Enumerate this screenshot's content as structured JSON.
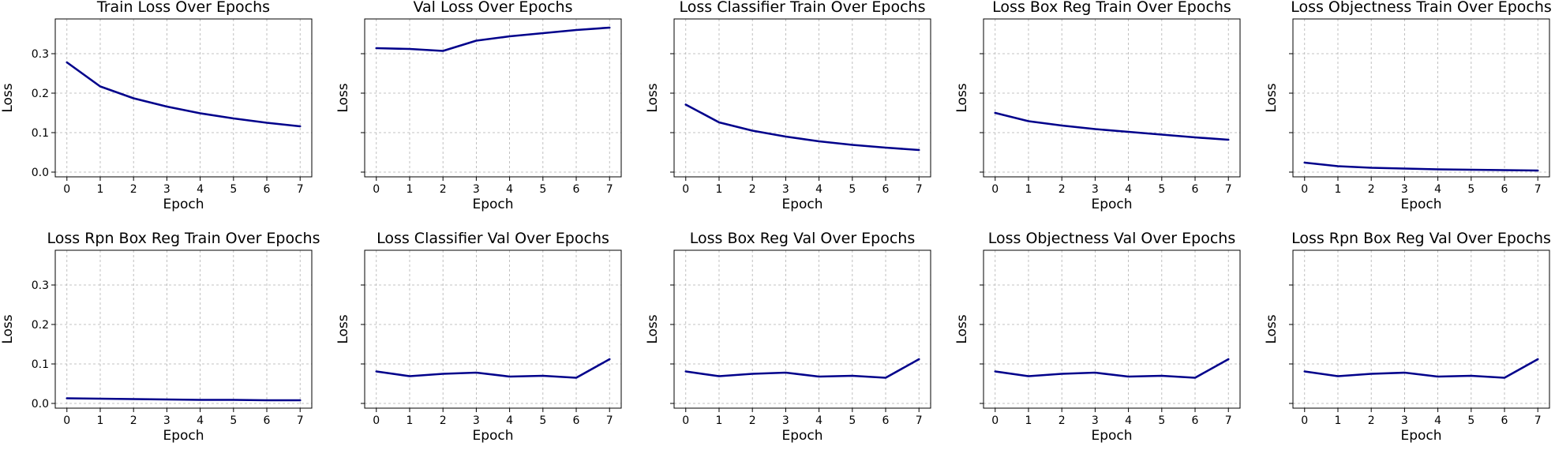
{
  "line_color": "#00008b",
  "grid_color": "#b0b0b0",
  "chart_data": [
    {
      "type": "line",
      "title": "Train Loss Over Epochs",
      "xlabel": "Epoch",
      "ylabel": "Loss",
      "x": [
        0,
        1,
        2,
        3,
        4,
        5,
        6,
        7
      ],
      "values": [
        0.278,
        0.217,
        0.187,
        0.166,
        0.149,
        0.136,
        0.125,
        0.116
      ],
      "xlim": [
        -0.35,
        7.35
      ],
      "ylim": [
        -0.012,
        0.388
      ],
      "xticks": [
        0,
        1,
        2,
        3,
        4,
        5,
        6,
        7
      ],
      "yticks": [
        0.0,
        0.1,
        0.2,
        0.3
      ],
      "ytick_labels": [
        "0.0",
        "0.1",
        "0.2",
        "0.3"
      ],
      "grid": true
    },
    {
      "type": "line",
      "title": "Val Loss Over Epochs",
      "xlabel": "Epoch",
      "ylabel": "Loss",
      "x": [
        0,
        1,
        2,
        3,
        4,
        5,
        6,
        7
      ],
      "values": [
        0.314,
        0.312,
        0.307,
        0.333,
        0.344,
        0.352,
        0.36,
        0.366
      ],
      "xlim": [
        -0.35,
        7.35
      ],
      "ylim": [
        -0.012,
        0.388
      ],
      "xticks": [
        0,
        1,
        2,
        3,
        4,
        5,
        6,
        7
      ],
      "yticks": [
        0.0,
        0.1,
        0.2,
        0.3
      ],
      "ytick_labels": [
        "",
        "",
        "",
        ""
      ],
      "grid": true
    },
    {
      "type": "line",
      "title": "Loss Classifier Train Over Epochs",
      "xlabel": "Epoch",
      "ylabel": "Loss",
      "x": [
        0,
        1,
        2,
        3,
        4,
        5,
        6,
        7
      ],
      "values": [
        0.171,
        0.126,
        0.105,
        0.09,
        0.078,
        0.069,
        0.062,
        0.056
      ],
      "xlim": [
        -0.35,
        7.35
      ],
      "ylim": [
        -0.012,
        0.388
      ],
      "xticks": [
        0,
        1,
        2,
        3,
        4,
        5,
        6,
        7
      ],
      "yticks": [
        0.0,
        0.1,
        0.2,
        0.3
      ],
      "ytick_labels": [
        "",
        "",
        "",
        ""
      ],
      "grid": true
    },
    {
      "type": "line",
      "title": "Loss Box Reg Train Over Epochs",
      "xlabel": "Epoch",
      "ylabel": "Loss",
      "x": [
        0,
        1,
        2,
        3,
        4,
        5,
        6,
        7
      ],
      "values": [
        0.15,
        0.129,
        0.118,
        0.109,
        0.102,
        0.095,
        0.088,
        0.082
      ],
      "xlim": [
        -0.35,
        7.35
      ],
      "ylim": [
        -0.012,
        0.388
      ],
      "xticks": [
        0,
        1,
        2,
        3,
        4,
        5,
        6,
        7
      ],
      "yticks": [
        0.0,
        0.1,
        0.2,
        0.3
      ],
      "ytick_labels": [
        "",
        "",
        "",
        ""
      ],
      "grid": true
    },
    {
      "type": "line",
      "title": "Loss Objectness Train Over Epochs",
      "xlabel": "Epoch",
      "ylabel": "Loss",
      "x": [
        0,
        1,
        2,
        3,
        4,
        5,
        6,
        7
      ],
      "values": [
        0.024,
        0.015,
        0.011,
        0.009,
        0.007,
        0.006,
        0.005,
        0.004
      ],
      "xlim": [
        -0.35,
        7.35
      ],
      "ylim": [
        -0.012,
        0.388
      ],
      "xticks": [
        0,
        1,
        2,
        3,
        4,
        5,
        6,
        7
      ],
      "yticks": [
        0.0,
        0.1,
        0.2,
        0.3
      ],
      "ytick_labels": [
        "",
        "",
        "",
        ""
      ],
      "grid": true
    },
    {
      "type": "line",
      "title": "Loss Rpn Box Reg Train Over Epochs",
      "xlabel": "Epoch",
      "ylabel": "Loss",
      "x": [
        0,
        1,
        2,
        3,
        4,
        5,
        6,
        7
      ],
      "values": [
        0.013,
        0.012,
        0.011,
        0.01,
        0.009,
        0.009,
        0.008,
        0.008
      ],
      "xlim": [
        -0.35,
        7.35
      ],
      "ylim": [
        -0.012,
        0.388
      ],
      "xticks": [
        0,
        1,
        2,
        3,
        4,
        5,
        6,
        7
      ],
      "yticks": [
        0.0,
        0.1,
        0.2,
        0.3
      ],
      "ytick_labels": [
        "0.0",
        "0.1",
        "0.2",
        "0.3"
      ],
      "grid": true
    },
    {
      "type": "line",
      "title": "Loss Classifier Val Over Epochs",
      "xlabel": "Epoch",
      "ylabel": "Loss",
      "x": [
        0,
        1,
        2,
        3,
        4,
        5,
        6,
        7
      ],
      "values": [
        0.081,
        0.069,
        0.075,
        0.078,
        0.068,
        0.07,
        0.065,
        0.112
      ],
      "xlim": [
        -0.35,
        7.35
      ],
      "ylim": [
        -0.012,
        0.388
      ],
      "xticks": [
        0,
        1,
        2,
        3,
        4,
        5,
        6,
        7
      ],
      "yticks": [
        0.0,
        0.1,
        0.2,
        0.3
      ],
      "ytick_labels": [
        "",
        "",
        "",
        ""
      ],
      "grid": true
    },
    {
      "type": "line",
      "title": "Loss Box Reg Val Over Epochs",
      "xlabel": "Epoch",
      "ylabel": "Loss",
      "x": [
        0,
        1,
        2,
        3,
        4,
        5,
        6,
        7
      ],
      "values": [
        0.081,
        0.069,
        0.075,
        0.078,
        0.068,
        0.07,
        0.065,
        0.112
      ],
      "xlim": [
        -0.35,
        7.35
      ],
      "ylim": [
        -0.012,
        0.388
      ],
      "xticks": [
        0,
        1,
        2,
        3,
        4,
        5,
        6,
        7
      ],
      "yticks": [
        0.0,
        0.1,
        0.2,
        0.3
      ],
      "ytick_labels": [
        "",
        "",
        "",
        ""
      ],
      "grid": true
    },
    {
      "type": "line",
      "title": "Loss Objectness Val Over Epochs",
      "xlabel": "Epoch",
      "ylabel": "Loss",
      "x": [
        0,
        1,
        2,
        3,
        4,
        5,
        6,
        7
      ],
      "values": [
        0.081,
        0.069,
        0.075,
        0.078,
        0.068,
        0.07,
        0.065,
        0.112
      ],
      "xlim": [
        -0.35,
        7.35
      ],
      "ylim": [
        -0.012,
        0.388
      ],
      "xticks": [
        0,
        1,
        2,
        3,
        4,
        5,
        6,
        7
      ],
      "yticks": [
        0.0,
        0.1,
        0.2,
        0.3
      ],
      "ytick_labels": [
        "",
        "",
        "",
        ""
      ],
      "grid": true
    },
    {
      "type": "line",
      "title": "Loss Rpn Box Reg Val Over Epochs",
      "xlabel": "Epoch",
      "ylabel": "Loss",
      "x": [
        0,
        1,
        2,
        3,
        4,
        5,
        6,
        7
      ],
      "values": [
        0.081,
        0.069,
        0.075,
        0.078,
        0.068,
        0.07,
        0.065,
        0.112
      ],
      "xlim": [
        -0.35,
        7.35
      ],
      "ylim": [
        -0.012,
        0.388
      ],
      "xticks": [
        0,
        1,
        2,
        3,
        4,
        5,
        6,
        7
      ],
      "yticks": [
        0.0,
        0.1,
        0.2,
        0.3
      ],
      "ytick_labels": [
        "",
        "",
        "",
        ""
      ],
      "grid": true
    }
  ]
}
